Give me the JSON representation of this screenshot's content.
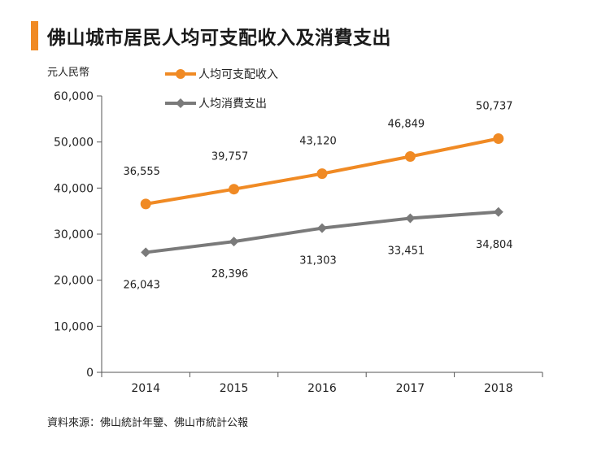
{
  "page": {
    "title": "佛山城市居民人均可支配收入及消費支出",
    "accent_color": "#f08a24",
    "source": "資料來源：佛山統計年鑒、佛山市統計公報"
  },
  "chart_data": {
    "type": "line",
    "title": "佛山城市居民人均可支配收入及消費支出",
    "ylabel": "元人民幣",
    "xlabel": "",
    "categories": [
      "2014",
      "2015",
      "2016",
      "2017",
      "2018"
    ],
    "ylim": [
      0,
      60000
    ],
    "yticks": [
      0,
      10000,
      20000,
      30000,
      40000,
      50000,
      60000
    ],
    "ytick_labels": [
      "0",
      "10,000",
      "20,000",
      "30,000",
      "40,000",
      "50,000",
      "60,000"
    ],
    "grid": false,
    "legend_position": "top-left",
    "series": [
      {
        "name": "人均可支配收入",
        "color": "#f08a24",
        "marker": "circle",
        "label_position": "above",
        "values": [
          36555,
          39757,
          43120,
          46849,
          50737
        ],
        "labels": [
          "36,555",
          "39,757",
          "43,120",
          "46,849",
          "50,737"
        ]
      },
      {
        "name": "人均消費支出",
        "color": "#7a7a7a",
        "marker": "diamond",
        "label_position": "below",
        "values": [
          26043,
          28396,
          31303,
          33451,
          34804
        ],
        "labels": [
          "26,043",
          "28,396",
          "31,303",
          "33,451",
          "34,804"
        ]
      }
    ]
  }
}
